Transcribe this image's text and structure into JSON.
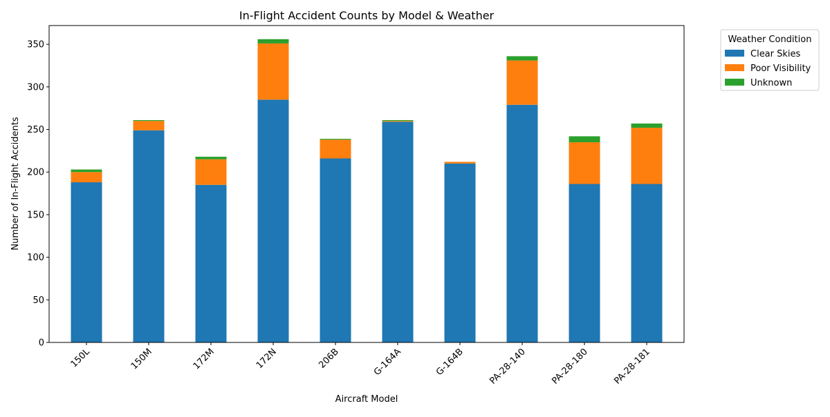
{
  "chart_data": {
    "type": "bar",
    "stacked": true,
    "title": "In-Flight Accident Counts by Model & Weather",
    "xlabel": "Aircraft Model",
    "ylabel": "Number of In-Flight Accidents",
    "categories": [
      "150L",
      "150M",
      "172M",
      "172N",
      "206B",
      "G-164A",
      "G-164B",
      "PA-28-140",
      "PA-28-180",
      "PA-28-181"
    ],
    "series": [
      {
        "name": "Clear Skies",
        "color": "#1f77b4",
        "values": [
          188,
          249,
          185,
          285,
          216,
          259,
          210,
          279,
          186,
          186
        ]
      },
      {
        "name": "Poor Visibility",
        "color": "#ff7f0e",
        "values": [
          12,
          11,
          30,
          66,
          22,
          1,
          2,
          52,
          49,
          66
        ]
      },
      {
        "name": "Unknown",
        "color": "#2ca02c",
        "values": [
          3,
          1,
          3,
          5,
          1,
          1,
          0,
          5,
          7,
          5
        ]
      }
    ],
    "ylim": [
      0,
      372
    ],
    "yticks": [
      0,
      50,
      100,
      150,
      200,
      250,
      300,
      350
    ],
    "grid": false,
    "legend": {
      "title": "Weather Condition",
      "placement": "upper-right-outside"
    }
  }
}
